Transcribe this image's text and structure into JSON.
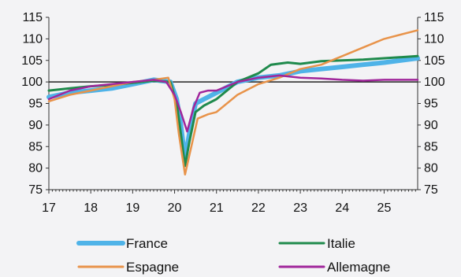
{
  "chart_data": {
    "type": "line",
    "title": "",
    "xlabel": "",
    "ylabel": "",
    "xlim": [
      17,
      25.8
    ],
    "ylim": [
      75,
      115
    ],
    "x_ticks": [
      17,
      18,
      19,
      20,
      21,
      22,
      23,
      24,
      25
    ],
    "y_ticks": [
      75,
      80,
      85,
      90,
      95,
      100,
      105,
      110,
      115
    ],
    "reference_line": 100,
    "legend_position": "bottom",
    "series": [
      {
        "name": "France",
        "color": "#4fb3e8",
        "width": 6,
        "points": [
          [
            17,
            96.5
          ],
          [
            17.5,
            97.5
          ],
          [
            18,
            98
          ],
          [
            18.5,
            98.5
          ],
          [
            19,
            99.5
          ],
          [
            19.5,
            100.5
          ],
          [
            19.9,
            100
          ],
          [
            20.05,
            96
          ],
          [
            20.15,
            90
          ],
          [
            20.25,
            82
          ],
          [
            20.35,
            88
          ],
          [
            20.5,
            95
          ],
          [
            20.7,
            96
          ],
          [
            21,
            97.5
          ],
          [
            21.5,
            100
          ],
          [
            22,
            101
          ],
          [
            22.5,
            101.5
          ],
          [
            23,
            102.5
          ],
          [
            23.5,
            103
          ],
          [
            24,
            103.5
          ],
          [
            24.5,
            104
          ],
          [
            25,
            104.5
          ],
          [
            25.8,
            105.5
          ]
        ]
      },
      {
        "name": "Italie",
        "color": "#1f8a4c",
        "width": 3,
        "points": [
          [
            17,
            98
          ],
          [
            17.5,
            98.5
          ],
          [
            18,
            99
          ],
          [
            18.5,
            99.3
          ],
          [
            19,
            99.8
          ],
          [
            19.5,
            100.3
          ],
          [
            19.9,
            100
          ],
          [
            20.05,
            95
          ],
          [
            20.15,
            88
          ],
          [
            20.25,
            80.5
          ],
          [
            20.35,
            86
          ],
          [
            20.5,
            93
          ],
          [
            20.7,
            94.5
          ],
          [
            21,
            96
          ],
          [
            21.5,
            100
          ],
          [
            22,
            102
          ],
          [
            22.3,
            104
          ],
          [
            22.7,
            104.5
          ],
          [
            23,
            104.2
          ],
          [
            23.5,
            104.8
          ],
          [
            24,
            105
          ],
          [
            24.5,
            105.2
          ],
          [
            25,
            105.5
          ],
          [
            25.8,
            106
          ]
        ]
      },
      {
        "name": "Espagne",
        "color": "#e8934a",
        "width": 2.5,
        "points": [
          [
            17,
            95.5
          ],
          [
            17.5,
            97
          ],
          [
            18,
            98
          ],
          [
            18.5,
            99
          ],
          [
            19,
            100
          ],
          [
            19.5,
            100.5
          ],
          [
            19.85,
            101
          ],
          [
            20,
            96
          ],
          [
            20.1,
            88
          ],
          [
            20.25,
            78.5
          ],
          [
            20.4,
            85
          ],
          [
            20.55,
            91.5
          ],
          [
            20.8,
            92.5
          ],
          [
            21,
            93
          ],
          [
            21.5,
            97
          ],
          [
            22,
            99.5
          ],
          [
            22.5,
            101
          ],
          [
            23,
            103
          ],
          [
            23.5,
            104
          ],
          [
            24,
            106
          ],
          [
            24.5,
            108
          ],
          [
            25,
            110
          ],
          [
            25.8,
            112
          ]
        ]
      },
      {
        "name": "Allemagne",
        "color": "#a0269b",
        "width": 2.5,
        "points": [
          [
            17,
            96
          ],
          [
            17.5,
            98
          ],
          [
            18,
            99
          ],
          [
            18.5,
            99.5
          ],
          [
            19,
            100
          ],
          [
            19.5,
            100.5
          ],
          [
            19.8,
            100
          ],
          [
            20,
            97
          ],
          [
            20.15,
            93
          ],
          [
            20.3,
            88.5
          ],
          [
            20.45,
            94
          ],
          [
            20.6,
            97.5
          ],
          [
            20.8,
            98
          ],
          [
            21,
            98
          ],
          [
            21.5,
            100
          ],
          [
            22,
            101
          ],
          [
            22.5,
            101.5
          ],
          [
            23,
            101
          ],
          [
            23.5,
            100.8
          ],
          [
            24,
            100.5
          ],
          [
            24.5,
            100.3
          ],
          [
            25,
            100.5
          ],
          [
            25.8,
            100.5
          ]
        ]
      }
    ]
  }
}
